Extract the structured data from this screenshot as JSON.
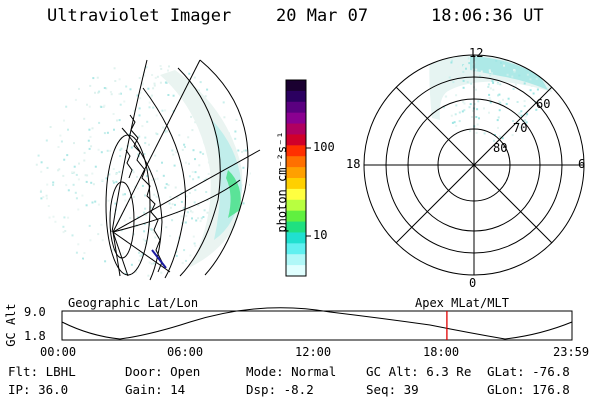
{
  "header": {
    "instrument": "Ultraviolet Imager",
    "date": "20 Mar 07",
    "time": "18:06:36 UT"
  },
  "colorbar": {
    "label": "photon cm⁻²s⁻¹",
    "tick_labels": [
      "100",
      "10"
    ],
    "colors": [
      "#1a0030",
      "#2b0060",
      "#5a0080",
      "#8a0090",
      "#b00060",
      "#d0002a",
      "#ff3000",
      "#ff7000",
      "#ffa000",
      "#ffd000",
      "#ffff40",
      "#b8ff40",
      "#60f040",
      "#20e080",
      "#20e0d0",
      "#60f0f0",
      "#b0f8f8",
      "#e0ffff"
    ]
  },
  "polar": {
    "mlt_labels": {
      "top": "12",
      "left": "18",
      "right": "6",
      "bottom": "0"
    },
    "lat_labels": [
      "60",
      "70",
      "80"
    ]
  },
  "altitude_plot": {
    "left_caption": "Geographic Lat/Lon",
    "right_caption": "Apex MLat/MLT",
    "ylabel": "GC Alt",
    "y_ticks": [
      "9.0",
      "1.8"
    ],
    "x_ticks": [
      "00:00",
      "06:00",
      "12:00",
      "18:00",
      "23:59"
    ],
    "marker_time": "18:06",
    "marker_color": "#e00000"
  },
  "info": {
    "filter": "Flt: LBHL",
    "ip": "IP: 36.0",
    "door": "Door: Open",
    "gain": "Gain: 14",
    "mode": "Mode: Normal",
    "dsp": "Dsp:   -8.2",
    "gc_alt": "GC Alt: 6.3 Re",
    "seq": "Seq: 39",
    "glat": "GLat: -76.8",
    "glon": "GLon: 176.8"
  }
}
